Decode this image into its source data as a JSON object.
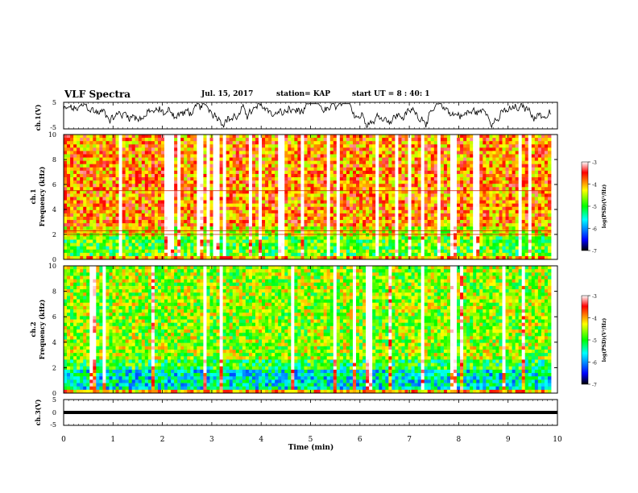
{
  "header": {
    "title": "VLF Spectra",
    "date": "Jul. 15, 2017",
    "station": "station= KAP",
    "start": "start UT = 8 : 40: 1"
  },
  "colors": {
    "waveform": "#000000",
    "colormap": [
      "#000000",
      "#0000ff",
      "#00ffff",
      "#00ff00",
      "#ffff00",
      "#ff0000",
      "#ffffff"
    ]
  },
  "chart_data": [
    {
      "type": "line",
      "panel": "ch1-waveform",
      "ylabel": "ch.1(V)",
      "ylim": [
        -5,
        5
      ],
      "yticks": [
        "5",
        "-5"
      ],
      "xlim": [
        0,
        10
      ],
      "description_values": "noisy signal oscillating around ~0 to +2 V",
      "values": []
    },
    {
      "type": "heatmap",
      "panel": "ch1-spectrogram",
      "ylabel": "ch.1\nFrequency (kHz)",
      "ylim": [
        0,
        10
      ],
      "yticks": [
        "0",
        "2",
        "4",
        "6",
        "8",
        "10"
      ],
      "xlim": [
        0,
        10
      ],
      "colorbar": {
        "label": "log(PSD)(V²/Hz)",
        "range": [
          -7,
          -3
        ],
        "ticks": [
          "-3",
          "-4",
          "-5",
          "-6",
          "-7"
        ]
      },
      "lines_khz": [
        2.0,
        2.3,
        5.5
      ]
    },
    {
      "type": "heatmap",
      "panel": "ch2-spectrogram",
      "ylabel": "ch.2\nFrequency (kHz)",
      "ylim": [
        0,
        10
      ],
      "yticks": [
        "0",
        "2",
        "4",
        "6",
        "8",
        "10"
      ],
      "xlim": [
        0,
        10
      ],
      "colorbar": {
        "label": "log(PSD)(V²/Hz)",
        "range": [
          -7,
          -3
        ],
        "ticks": [
          "-3",
          "-4",
          "-5",
          "-6",
          "-7"
        ]
      }
    },
    {
      "type": "line",
      "panel": "ch3-waveform",
      "ylabel": "ch.3(V)",
      "ylim": [
        -5,
        5
      ],
      "yticks": [
        "5",
        "0",
        "-5"
      ],
      "xlim": [
        0,
        10
      ],
      "values": [
        {
          "x": 0,
          "y": -1.5
        },
        {
          "x": 9.8,
          "y": -1.5
        }
      ]
    }
  ],
  "xaxis": {
    "label": "Time (min)",
    "ticks": [
      "0",
      "1",
      "2",
      "3",
      "4",
      "5",
      "6",
      "7",
      "8",
      "9",
      "10"
    ]
  }
}
